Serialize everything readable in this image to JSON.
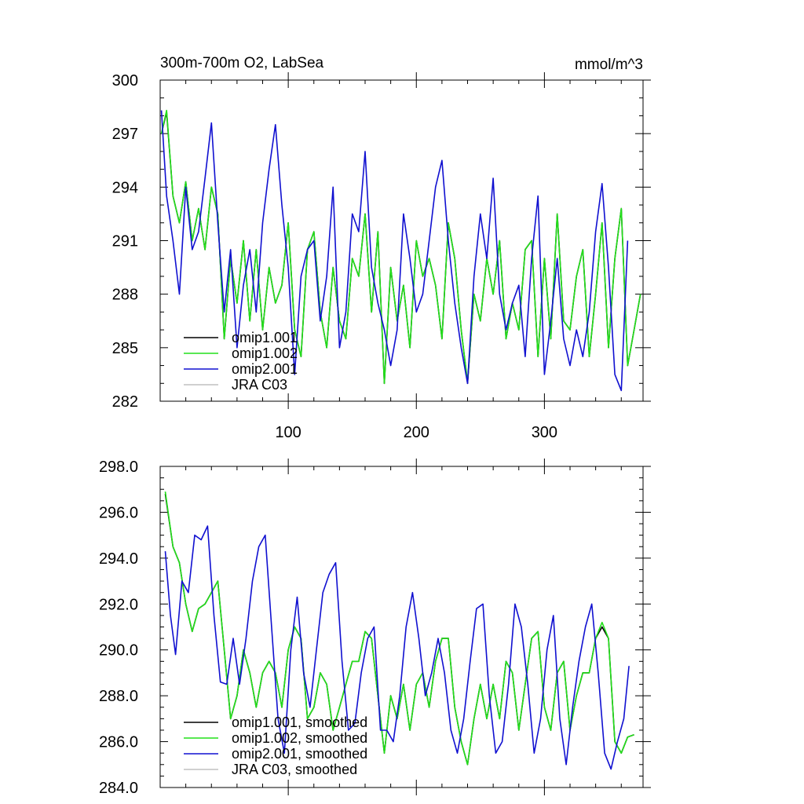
{
  "colors": {
    "omip1_001": "#000000",
    "omip1_002": "#22e01a",
    "omip2_001": "#1010d0",
    "jra_c03": "#c0c0c0",
    "axis": "#000000"
  },
  "chart_data": [
    {
      "type": "line",
      "title": "300m-700m O2, LabSea",
      "units": "mmol/m^3",
      "xlim": [
        0,
        377
      ],
      "ylim": [
        282,
        300
      ],
      "xticks": [
        100,
        200,
        300
      ],
      "xtick_labels": [
        "100",
        "200",
        "300"
      ],
      "yticks": [
        282,
        285,
        288,
        291,
        294,
        297,
        300
      ],
      "ytick_labels": [
        "282",
        "285",
        "288",
        "291",
        "294",
        "297",
        "300"
      ],
      "legend_position": "bottom-left",
      "series": [
        {
          "name": "omip1.001",
          "x": [
            1,
            5,
            10,
            15,
            20,
            25,
            30,
            35,
            40,
            45,
            50,
            55,
            60,
            65,
            70,
            75,
            80,
            85,
            90,
            95,
            100,
            105,
            110,
            115,
            120,
            125,
            130,
            135,
            140,
            145,
            150,
            155,
            160,
            165,
            170,
            175,
            180,
            185,
            190,
            195,
            200,
            205,
            210,
            215,
            220,
            225,
            230,
            235,
            240,
            245,
            250,
            255,
            260,
            265,
            270,
            275,
            280,
            285,
            290,
            295,
            300,
            305,
            310,
            315,
            320,
            325,
            330,
            335,
            340,
            345,
            350,
            355,
            360,
            365,
            370,
            375
          ],
          "y": [
            297.0,
            298.2,
            293.5,
            292.0,
            294.3,
            291.0,
            292.8,
            290.5,
            294.0,
            292.5,
            285.5,
            290.0,
            287.5,
            291.0,
            286.5,
            290.5,
            286.0,
            289.5,
            287.5,
            288.5,
            292.0,
            286.0,
            284.5,
            290.5,
            291.5,
            287.0,
            285.0,
            289.5,
            286.5,
            285.5,
            290.0,
            289.0,
            292.5,
            287.0,
            291.5,
            283.0,
            289.5,
            286.5,
            288.5,
            285.0,
            291.0,
            289.0,
            290.0,
            288.5,
            285.5,
            292.0,
            290.0,
            286.0,
            283.0,
            288.0,
            286.5,
            290.0,
            288.0,
            291.0,
            285.5,
            287.5,
            286.0,
            290.5,
            291.0,
            284.5,
            290.0,
            285.5,
            292.5,
            286.5,
            286.0,
            289.0,
            290.5,
            284.5,
            288.0,
            292.0,
            285.0,
            290.0,
            292.8,
            284.0,
            286.0,
            288.0
          ]
        },
        {
          "name": "omip1.002",
          "x": [
            1,
            5,
            10,
            15,
            20,
            25,
            30,
            35,
            40,
            45,
            50,
            55,
            60,
            65,
            70,
            75,
            80,
            85,
            90,
            95,
            100,
            105,
            110,
            115,
            120,
            125,
            130,
            135,
            140,
            145,
            150,
            155,
            160,
            165,
            170,
            175,
            180,
            185,
            190,
            195,
            200,
            205,
            210,
            215,
            220,
            225,
            230,
            235,
            240,
            245,
            250,
            255,
            260,
            265,
            270,
            275,
            280,
            285,
            290,
            295,
            300,
            305,
            310,
            315,
            320,
            325,
            330,
            335,
            340,
            345,
            350,
            355,
            360,
            365,
            370,
            375
          ],
          "y": [
            297.0,
            298.3,
            293.5,
            292.0,
            294.3,
            291.0,
            292.8,
            290.5,
            294.0,
            292.5,
            285.5,
            290.0,
            287.5,
            291.0,
            286.5,
            290.5,
            286.0,
            289.5,
            287.5,
            288.5,
            292.0,
            286.0,
            284.5,
            290.5,
            291.5,
            287.0,
            285.0,
            289.5,
            286.5,
            285.5,
            290.0,
            289.0,
            292.5,
            287.0,
            291.5,
            283.0,
            289.5,
            286.5,
            288.5,
            285.0,
            291.0,
            289.0,
            290.0,
            288.5,
            285.5,
            292.0,
            290.0,
            286.0,
            283.1,
            288.0,
            286.5,
            290.0,
            288.0,
            291.0,
            285.5,
            287.5,
            286.0,
            290.5,
            291.0,
            284.5,
            290.0,
            285.5,
            292.5,
            286.5,
            286.0,
            289.0,
            290.5,
            284.5,
            288.0,
            292.0,
            285.0,
            290.0,
            292.8,
            284.0,
            286.0,
            288.0
          ]
        },
        {
          "name": "omip2.001",
          "x": [
            1,
            5,
            10,
            15,
            20,
            25,
            30,
            35,
            40,
            45,
            50,
            55,
            60,
            65,
            70,
            75,
            80,
            85,
            90,
            95,
            100,
            105,
            110,
            115,
            120,
            125,
            130,
            135,
            140,
            145,
            150,
            155,
            160,
            165,
            170,
            175,
            180,
            185,
            190,
            195,
            200,
            205,
            210,
            215,
            220,
            225,
            230,
            235,
            240,
            245,
            250,
            255,
            260,
            265,
            270,
            275,
            280,
            285,
            290,
            295,
            300,
            305,
            310,
            315,
            320,
            325,
            330,
            335,
            340,
            345,
            350,
            355,
            360,
            365
          ],
          "y": [
            298.3,
            293.5,
            291.0,
            288.0,
            294.0,
            290.5,
            291.5,
            294.5,
            297.6,
            292.0,
            287.0,
            290.5,
            285.0,
            288.5,
            290.5,
            287.0,
            292.0,
            295.0,
            297.5,
            293.0,
            289.5,
            283.5,
            289.0,
            290.5,
            291.0,
            286.5,
            289.0,
            294.0,
            285.0,
            287.0,
            292.5,
            291.5,
            296.0,
            289.5,
            287.5,
            286.0,
            284.0,
            286.0,
            292.5,
            290.0,
            287.0,
            288.0,
            291.0,
            294.0,
            295.5,
            291.0,
            287.5,
            285.0,
            283.0,
            289.0,
            292.5,
            290.0,
            294.5,
            288.0,
            286.0,
            287.5,
            288.5,
            284.5,
            290.0,
            293.5,
            283.5,
            286.5,
            290.0,
            285.5,
            284.0,
            286.0,
            284.5,
            287.0,
            291.5,
            294.2,
            289.5,
            283.5,
            282.6,
            291.0
          ]
        },
        {
          "name": "JRA C03",
          "x": [],
          "y": []
        }
      ]
    },
    {
      "type": "line",
      "title": "",
      "xlim": [
        0,
        377
      ],
      "ylim": [
        284,
        298
      ],
      "xticks": [
        100,
        200,
        300
      ],
      "xtick_labels": [],
      "yticks": [
        284,
        286,
        288,
        290,
        292,
        294,
        296,
        298
      ],
      "ytick_labels": [
        "284.0",
        "286.0",
        "288.0",
        "290.0",
        "292.0",
        "294.0",
        "296.0",
        "298.0"
      ],
      "legend_position": "bottom-left",
      "series": [
        {
          "name": "omip1.001, smoothed",
          "x": [
            4,
            10,
            15,
            20,
            25,
            30,
            35,
            40,
            45,
            50,
            55,
            60,
            65,
            70,
            75,
            80,
            85,
            90,
            95,
            100,
            105,
            110,
            115,
            120,
            125,
            130,
            135,
            140,
            145,
            150,
            155,
            160,
            165,
            170,
            175,
            180,
            185,
            190,
            195,
            200,
            205,
            210,
            215,
            220,
            225,
            230,
            235,
            240,
            245,
            250,
            255,
            260,
            265,
            270,
            275,
            280,
            285,
            290,
            295,
            300,
            305,
            310,
            315,
            320,
            325,
            330,
            335,
            340,
            345,
            350,
            355,
            360,
            365,
            370
          ],
          "y": [
            296.8,
            294.5,
            293.8,
            292.0,
            290.8,
            291.8,
            292.0,
            292.5,
            293.0,
            290.0,
            287.0,
            288.0,
            290.0,
            289.0,
            287.5,
            289.0,
            289.5,
            289.0,
            287.5,
            290.0,
            291.0,
            290.5,
            287.0,
            287.5,
            289.0,
            288.5,
            286.5,
            287.5,
            288.5,
            289.5,
            289.5,
            290.8,
            290.5,
            288.0,
            285.5,
            288.0,
            287.0,
            288.5,
            286.5,
            288.5,
            289.0,
            287.5,
            289.5,
            290.5,
            290.5,
            287.5,
            286.0,
            285.0,
            287.0,
            288.5,
            287.0,
            288.5,
            287.0,
            289.5,
            289.0,
            286.5,
            288.5,
            290.5,
            290.8,
            287.5,
            286.5,
            289.0,
            289.5,
            286.5,
            288.0,
            289.0,
            289.0,
            290.5,
            291.0,
            290.5,
            286.0,
            285.5,
            286.2,
            286.3
          ]
        },
        {
          "name": "omip1.002, smoothed",
          "x": [
            4,
            10,
            15,
            20,
            25,
            30,
            35,
            40,
            45,
            50,
            55,
            60,
            65,
            70,
            75,
            80,
            85,
            90,
            95,
            100,
            105,
            110,
            115,
            120,
            125,
            130,
            135,
            140,
            145,
            150,
            155,
            160,
            165,
            170,
            175,
            180,
            185,
            190,
            195,
            200,
            205,
            210,
            215,
            220,
            225,
            230,
            235,
            240,
            245,
            250,
            255,
            260,
            265,
            270,
            275,
            280,
            285,
            290,
            295,
            300,
            305,
            310,
            315,
            320,
            325,
            330,
            335,
            340,
            345,
            350,
            355,
            360,
            365,
            370
          ],
          "y": [
            296.9,
            294.5,
            293.8,
            292.0,
            290.8,
            291.8,
            292.0,
            292.5,
            293.0,
            290.0,
            287.0,
            288.0,
            290.0,
            289.0,
            287.5,
            289.0,
            289.5,
            289.0,
            287.5,
            290.0,
            291.0,
            290.5,
            287.0,
            287.5,
            289.0,
            288.5,
            286.5,
            287.5,
            288.5,
            289.5,
            289.5,
            290.8,
            290.5,
            288.0,
            285.5,
            288.0,
            287.0,
            288.5,
            286.5,
            288.5,
            289.0,
            287.5,
            289.5,
            290.5,
            290.5,
            287.5,
            286.0,
            285.0,
            287.0,
            288.5,
            287.0,
            288.5,
            287.0,
            289.5,
            289.0,
            286.5,
            288.5,
            290.5,
            290.8,
            287.5,
            286.5,
            289.0,
            289.5,
            286.5,
            288.0,
            289.0,
            289.0,
            290.5,
            291.2,
            290.5,
            286.0,
            285.5,
            286.2,
            286.3
          ]
        },
        {
          "name": "omip2.001, smoothed",
          "x": [
            4,
            8,
            12,
            17,
            22,
            27,
            32,
            37,
            42,
            47,
            52,
            57,
            62,
            67,
            72,
            77,
            82,
            87,
            92,
            97,
            102,
            107,
            112,
            117,
            122,
            127,
            132,
            137,
            142,
            147,
            152,
            157,
            162,
            167,
            172,
            177,
            182,
            187,
            192,
            197,
            202,
            207,
            212,
            217,
            222,
            227,
            232,
            237,
            242,
            247,
            252,
            257,
            262,
            267,
            272,
            277,
            282,
            287,
            292,
            297,
            302,
            307,
            312,
            317,
            322,
            327,
            332,
            337,
            342,
            347,
            352,
            357,
            362,
            366
          ],
          "y": [
            294.3,
            291.5,
            289.8,
            293.0,
            292.5,
            295.0,
            294.8,
            295.4,
            291.5,
            288.6,
            288.5,
            290.5,
            288.5,
            290.5,
            293.0,
            294.5,
            295.0,
            291.0,
            287.0,
            285.5,
            290.0,
            292.3,
            289.0,
            287.5,
            290.0,
            292.5,
            293.3,
            293.8,
            289.5,
            286.5,
            286.8,
            289.0,
            290.5,
            291.0,
            286.5,
            286.5,
            286.0,
            288.0,
            291.0,
            292.5,
            290.5,
            288.0,
            289.0,
            290.5,
            289.0,
            286.5,
            285.5,
            287.0,
            289.5,
            291.8,
            292.0,
            288.0,
            285.5,
            286.0,
            288.5,
            292.0,
            291.0,
            288.5,
            285.5,
            287.0,
            290.0,
            291.5,
            287.0,
            285.0,
            287.5,
            289.5,
            291.0,
            292.0,
            289.0,
            285.5,
            284.8,
            286.0,
            287.0,
            289.3
          ]
        },
        {
          "name": "JRA C03, smoothed",
          "x": [],
          "y": []
        }
      ]
    }
  ]
}
